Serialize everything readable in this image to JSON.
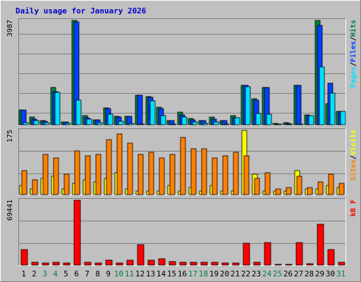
{
  "title": "Daily usage for January 2026",
  "colors": {
    "background": "#c0c0c0",
    "title": "#0000cc",
    "hits": "#008040",
    "files": "#0040ff",
    "pages": "#00e0ff",
    "visits": "#ffff00",
    "sites": "#ff8000",
    "kbytes": "#ff0000",
    "weekend_label": "#008040",
    "weekday_label": "#000000"
  },
  "chart_data": [
    {
      "type": "bar",
      "panel": "hits-files-pages",
      "max_label": "3987",
      "ylim": [
        0,
        3987
      ],
      "legend": [
        {
          "text": "Pages",
          "color": "#00e0ff"
        },
        {
          "text": "/",
          "color": "#000000"
        },
        {
          "text": "Files",
          "color": "#0040ff"
        },
        {
          "text": "/",
          "color": "#000000"
        },
        {
          "text": "Hits",
          "color": "#008040"
        }
      ],
      "categories": [
        "1",
        "2",
        "3",
        "4",
        "5",
        "6",
        "7",
        "8",
        "9",
        "10",
        "11",
        "12",
        "13",
        "14",
        "15",
        "16",
        "17",
        "18",
        "19",
        "20",
        "21",
        "22",
        "23",
        "24",
        "25",
        "26",
        "27",
        "28",
        "29",
        "30",
        "31"
      ],
      "series": [
        {
          "name": "Hits",
          "values": [
            560,
            300,
            160,
            1420,
            120,
            3987,
            340,
            200,
            650,
            310,
            320,
            1140,
            1070,
            670,
            150,
            480,
            250,
            160,
            300,
            170,
            350,
            1520,
            1000,
            1440,
            60,
            70,
            1500,
            380,
            3987,
            800,
            500
          ]
        },
        {
          "name": "Files",
          "values": [
            560,
            220,
            130,
            1260,
            100,
            3940,
            260,
            190,
            610,
            300,
            320,
            1140,
            1040,
            620,
            150,
            390,
            190,
            150,
            220,
            150,
            270,
            1520,
            950,
            1440,
            40,
            60,
            1500,
            360,
            3800,
            1580,
            500
          ]
        },
        {
          "name": "Pages",
          "values": [
            80,
            160,
            80,
            1240,
            60,
            950,
            210,
            80,
            400,
            130,
            60,
            40,
            920,
            360,
            20,
            290,
            120,
            60,
            100,
            30,
            270,
            1460,
            420,
            400,
            20,
            40,
            40,
            360,
            2200,
            1210,
            500
          ]
        }
      ]
    },
    {
      "type": "bar",
      "panel": "visits-sites",
      "max_label": "175",
      "ylim": [
        0,
        175
      ],
      "legend": [
        {
          "text": "Sites",
          "color": "#ff8000"
        },
        {
          "text": "/",
          "color": "#000000"
        },
        {
          "text": "Visits",
          "color": "#ffff00"
        }
      ],
      "categories": [
        "1",
        "2",
        "3",
        "4",
        "5",
        "6",
        "7",
        "8",
        "9",
        "10",
        "11",
        "12",
        "13",
        "14",
        "15",
        "16",
        "17",
        "18",
        "19",
        "20",
        "21",
        "22",
        "23",
        "24",
        "25",
        "26",
        "27",
        "28",
        "29",
        "30",
        "31"
      ],
      "series": [
        {
          "name": "Visits",
          "values": [
            25,
            15,
            45,
            50,
            15,
            30,
            40,
            35,
            45,
            60,
            15,
            10,
            10,
            10,
            25,
            10,
            20,
            10,
            25,
            10,
            10,
            175,
            55,
            10,
            10,
            10,
            65,
            15,
            15,
            25,
            20
          ]
        },
        {
          "name": "Sites",
          "values": [
            65,
            40,
            110,
            100,
            55,
            120,
            105,
            110,
            150,
            165,
            140,
            110,
            115,
            100,
            110,
            155,
            125,
            125,
            100,
            105,
            115,
            105,
            45,
            60,
            15,
            20,
            50,
            20,
            35,
            55,
            30
          ]
        }
      ]
    },
    {
      "type": "bar",
      "panel": "kbytes",
      "max_label": "69441",
      "ylim": [
        0,
        69441
      ],
      "legend": [
        {
          "text": "kB F",
          "color": "#ff0000"
        }
      ],
      "categories": [
        "1",
        "2",
        "3",
        "4",
        "5",
        "6",
        "7",
        "8",
        "9",
        "10",
        "11",
        "12",
        "13",
        "14",
        "15",
        "16",
        "17",
        "18",
        "19",
        "20",
        "21",
        "22",
        "23",
        "24",
        "25",
        "26",
        "27",
        "28",
        "29",
        "30",
        "31"
      ],
      "series": [
        {
          "name": "kB F",
          "values": [
            16800,
            2700,
            2300,
            2700,
            2000,
            69441,
            2700,
            2300,
            5200,
            2300,
            5500,
            22000,
            5500,
            6700,
            3400,
            3200,
            3200,
            3200,
            2800,
            2500,
            2500,
            23500,
            3000,
            24200,
            1100,
            1100,
            24200,
            1800,
            44000,
            16800,
            3200
          ]
        }
      ]
    }
  ],
  "x_labels": [
    {
      "text": "1",
      "weekend": false
    },
    {
      "text": "2",
      "weekend": false
    },
    {
      "text": "3",
      "weekend": true
    },
    {
      "text": "4",
      "weekend": true
    },
    {
      "text": "5",
      "weekend": false
    },
    {
      "text": "6",
      "weekend": false
    },
    {
      "text": "7",
      "weekend": false
    },
    {
      "text": "8",
      "weekend": false
    },
    {
      "text": "9",
      "weekend": false
    },
    {
      "text": "10",
      "weekend": true
    },
    {
      "text": "11",
      "weekend": true
    },
    {
      "text": "12",
      "weekend": false
    },
    {
      "text": "13",
      "weekend": false
    },
    {
      "text": "14",
      "weekend": false
    },
    {
      "text": "15",
      "weekend": false
    },
    {
      "text": "16",
      "weekend": false
    },
    {
      "text": "17",
      "weekend": true
    },
    {
      "text": "18",
      "weekend": true
    },
    {
      "text": "19",
      "weekend": false
    },
    {
      "text": "20",
      "weekend": false
    },
    {
      "text": "21",
      "weekend": false
    },
    {
      "text": "22",
      "weekend": false
    },
    {
      "text": "23",
      "weekend": false
    },
    {
      "text": "24",
      "weekend": true
    },
    {
      "text": "25",
      "weekend": true
    },
    {
      "text": "26",
      "weekend": false
    },
    {
      "text": "27",
      "weekend": false
    },
    {
      "text": "28",
      "weekend": false
    },
    {
      "text": "29",
      "weekend": false
    },
    {
      "text": "30",
      "weekend": false
    },
    {
      "text": "31",
      "weekend": true
    }
  ]
}
